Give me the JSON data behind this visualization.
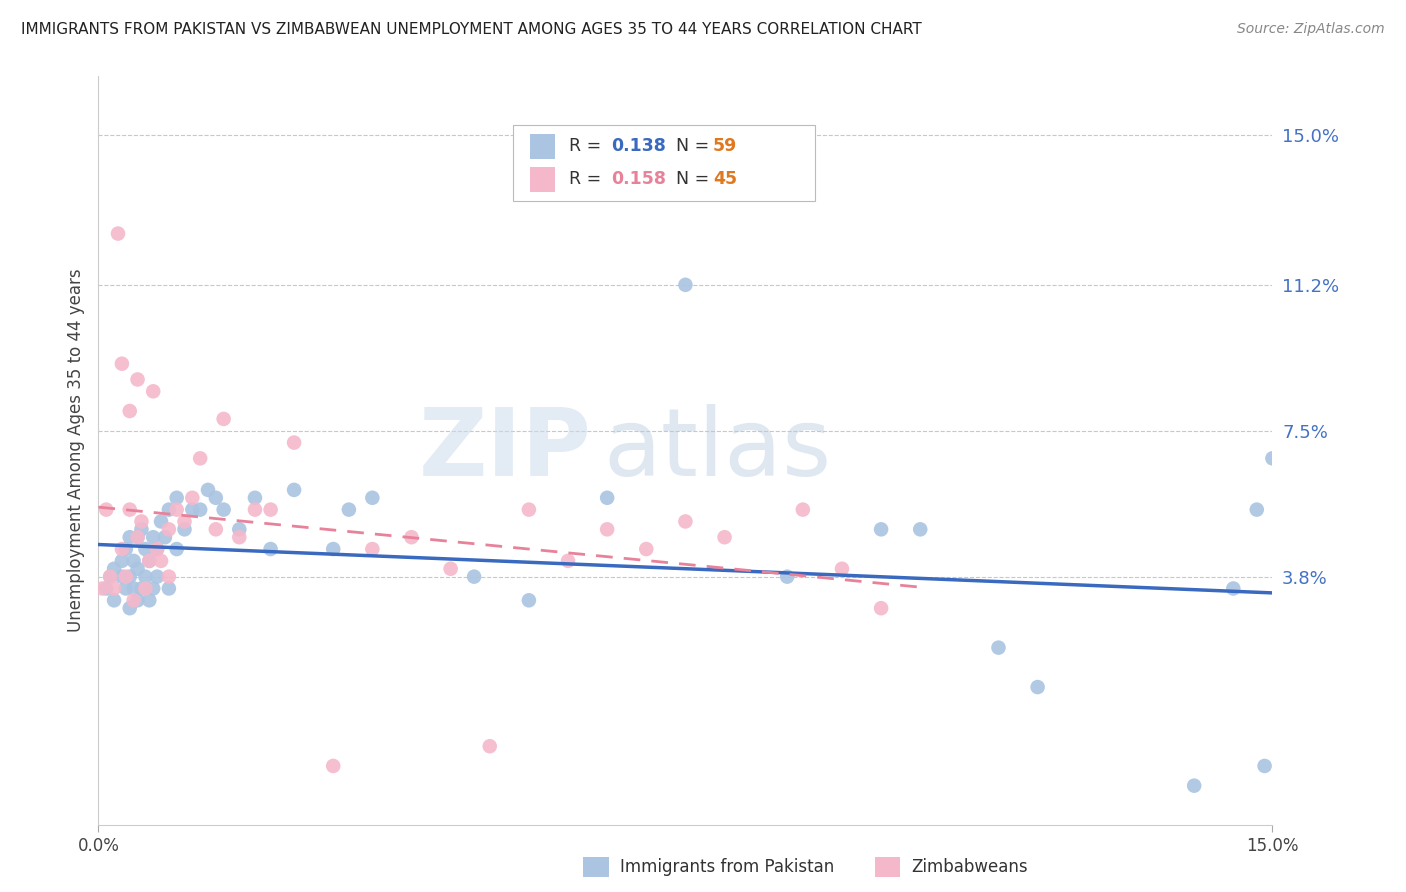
{
  "title": "IMMIGRANTS FROM PAKISTAN VS ZIMBABWEAN UNEMPLOYMENT AMONG AGES 35 TO 44 YEARS CORRELATION CHART",
  "source": "Source: ZipAtlas.com",
  "ylabel": "Unemployment Among Ages 35 to 44 years",
  "xlim": [
    0.0,
    15.0
  ],
  "ylim": [
    -2.5,
    16.5
  ],
  "x_tick_labels": [
    "0.0%",
    "15.0%"
  ],
  "y_tick_vals": [
    3.8,
    7.5,
    11.2,
    15.0
  ],
  "y_tick_labels": [
    "3.8%",
    "7.5%",
    "11.2%",
    "15.0%"
  ],
  "series1_name": "Immigrants from Pakistan",
  "series1_color": "#aac4e2",
  "series1_R": "0.138",
  "series1_N": "59",
  "series1_line_color": "#3a6abf",
  "series2_name": "Zimbabweans",
  "series2_color": "#f5b8cb",
  "series2_R": "0.158",
  "series2_N": "45",
  "series2_line_color": "#e8829a",
  "legend_R_color": "#3a6abf",
  "legend_N_color": "#e07820",
  "watermark_zip": "ZIP",
  "watermark_atlas": "atlas",
  "background_color": "#ffffff",
  "grid_color": "#c8c8c8",
  "pakistan_x": [
    0.1,
    0.15,
    0.2,
    0.2,
    0.3,
    0.3,
    0.35,
    0.35,
    0.4,
    0.4,
    0.4,
    0.45,
    0.45,
    0.5,
    0.5,
    0.5,
    0.55,
    0.55,
    0.6,
    0.6,
    0.65,
    0.65,
    0.7,
    0.7,
    0.75,
    0.75,
    0.8,
    0.85,
    0.9,
    0.9,
    1.0,
    1.0,
    1.1,
    1.2,
    1.3,
    1.4,
    1.5,
    1.6,
    1.8,
    2.0,
    2.2,
    2.5,
    3.0,
    3.2,
    3.5,
    4.8,
    5.5,
    6.5,
    7.5,
    8.8,
    10.0,
    10.5,
    11.5,
    12.0,
    14.0,
    14.5,
    14.8,
    14.9,
    15.0
  ],
  "pakistan_y": [
    3.5,
    3.8,
    4.0,
    3.2,
    3.8,
    4.2,
    3.5,
    4.5,
    3.0,
    3.8,
    4.8,
    3.5,
    4.2,
    3.2,
    4.0,
    4.8,
    3.5,
    5.0,
    3.8,
    4.5,
    3.2,
    4.2,
    3.5,
    4.8,
    3.8,
    4.5,
    5.2,
    4.8,
    3.5,
    5.5,
    4.5,
    5.8,
    5.0,
    5.5,
    5.5,
    6.0,
    5.8,
    5.5,
    5.0,
    5.8,
    4.5,
    6.0,
    4.5,
    5.5,
    5.8,
    3.8,
    3.2,
    5.8,
    11.2,
    3.8,
    5.0,
    5.0,
    2.0,
    1.0,
    -1.5,
    3.5,
    5.5,
    -1.0,
    6.8
  ],
  "zimbabwe_x": [
    0.05,
    0.1,
    0.15,
    0.2,
    0.25,
    0.3,
    0.3,
    0.35,
    0.4,
    0.4,
    0.45,
    0.5,
    0.5,
    0.55,
    0.6,
    0.65,
    0.7,
    0.75,
    0.8,
    0.9,
    0.9,
    1.0,
    1.1,
    1.2,
    1.3,
    1.5,
    1.6,
    1.8,
    2.0,
    2.2,
    2.5,
    3.0,
    3.5,
    4.0,
    4.5,
    5.0,
    5.5,
    6.0,
    6.5,
    7.0,
    7.5,
    8.0,
    9.0,
    9.5,
    10.0
  ],
  "zimbabwe_y": [
    3.5,
    5.5,
    3.8,
    3.5,
    12.5,
    4.5,
    9.2,
    3.8,
    5.5,
    8.0,
    3.2,
    4.8,
    8.8,
    5.2,
    3.5,
    4.2,
    8.5,
    4.5,
    4.2,
    5.0,
    3.8,
    5.5,
    5.2,
    5.8,
    6.8,
    5.0,
    7.8,
    4.8,
    5.5,
    5.5,
    7.2,
    -1.0,
    4.5,
    4.8,
    4.0,
    -0.5,
    5.5,
    4.2,
    5.0,
    4.5,
    5.2,
    4.8,
    5.5,
    4.0,
    3.0
  ]
}
